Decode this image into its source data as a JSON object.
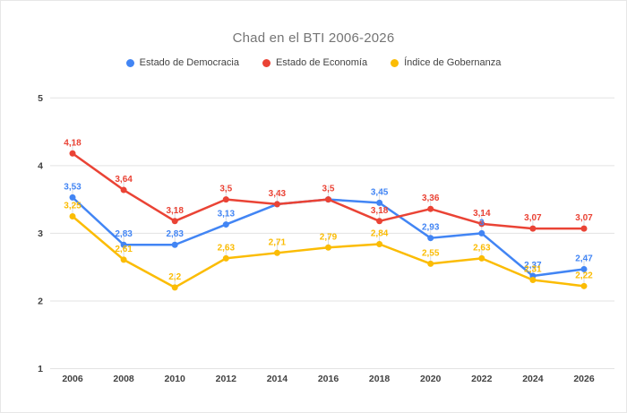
{
  "chart_data": {
    "type": "line",
    "title": "Chad en el BTI 2006-2026",
    "categories": [
      "2006",
      "2008",
      "2010",
      "2012",
      "2014",
      "2016",
      "2018",
      "2020",
      "2022",
      "2024",
      "2026"
    ],
    "series": [
      {
        "name": "Estado de Democracia",
        "color": "#4285f4",
        "values": [
          3.53,
          2.83,
          2.83,
          3.13,
          3.43,
          3.5,
          3.45,
          2.93,
          3.0,
          2.37,
          2.47
        ],
        "labels": [
          "3,53",
          "2,83",
          "2,83",
          "3,13",
          null,
          null,
          "3,45",
          "2,93",
          "3",
          "2,37",
          "2,47"
        ]
      },
      {
        "name": "Estado de Economía",
        "color": "#ea4335",
        "values": [
          4.18,
          3.64,
          3.18,
          3.5,
          3.43,
          3.5,
          3.18,
          3.36,
          3.14,
          3.07,
          3.07
        ],
        "labels": [
          "4,18",
          "3,64",
          "3,18",
          "3,5",
          "3,43",
          "3,5",
          "3,18",
          "3,36",
          "3,14",
          "3,07",
          "3,07"
        ]
      },
      {
        "name": "Índice de Gobernanza",
        "color": "#fbbc04",
        "values": [
          3.25,
          2.61,
          2.2,
          2.63,
          2.71,
          2.79,
          2.84,
          2.55,
          2.63,
          2.31,
          2.22
        ],
        "labels": [
          "3,25",
          "2,61",
          "2,2",
          "2,63",
          "2,71",
          "2,79",
          "2,84",
          "2,55",
          "2,63",
          "2,31",
          "2,22"
        ]
      }
    ],
    "yticks": [
      "5",
      "4",
      "3",
      "2",
      "1"
    ],
    "ytick_values": [
      5,
      4,
      3,
      2,
      1
    ],
    "ylim": [
      1,
      5
    ],
    "grid": true,
    "legend_position": "top",
    "gridline_color": "#e3e3e3",
    "label_decimal_separator": ","
  }
}
